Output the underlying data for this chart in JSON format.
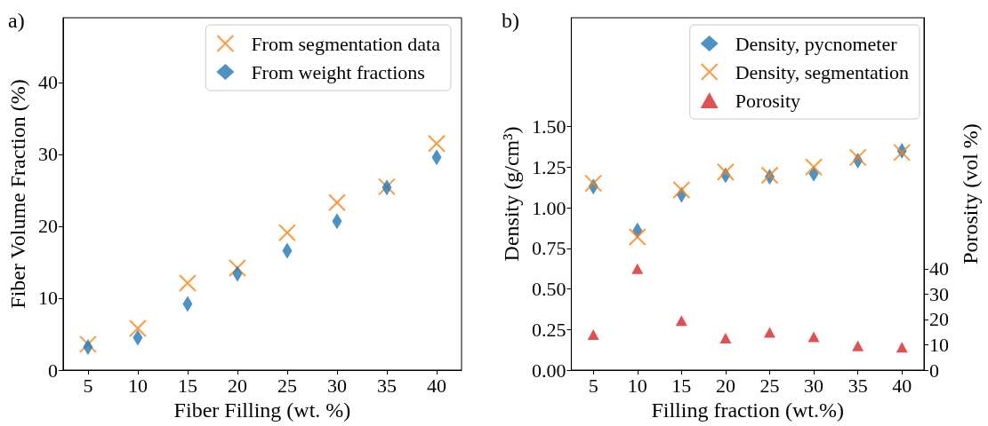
{
  "chart_data": [
    {
      "type": "scatter",
      "title": "a)",
      "xlabel": "Fiber Filling (wt. %)",
      "ylabel": "Fiber Volume Fraction (%)",
      "x": [
        5,
        10,
        15,
        20,
        25,
        30,
        35,
        40
      ],
      "series": [
        {
          "name": "From segmentation data",
          "color": "#ff7f0e",
          "marker": "cross",
          "values": [
            3.6,
            5.8,
            12.1,
            14.2,
            19.1,
            23.3,
            25.5,
            31.5
          ]
        },
        {
          "name": "From weight fractions",
          "color": "#1f77b4",
          "marker": "diamond",
          "values": [
            3.2,
            4.5,
            9.2,
            13.4,
            16.6,
            20.7,
            25.4,
            29.6
          ]
        }
      ],
      "xlim": [
        2.5,
        42.5
      ],
      "xticks": [
        5,
        10,
        15,
        20,
        25,
        30,
        35,
        40
      ],
      "ylim": [
        0,
        49
      ],
      "yticks": [
        0,
        10,
        20,
        30,
        40
      ],
      "legend": "top right"
    },
    {
      "type": "scatter",
      "title": "b)",
      "xlabel": "Filling fraction (wt.%)",
      "ylabel": "Density (g/cm³)",
      "y2label": "Porosity (vol %)",
      "x": [
        5,
        10,
        15,
        20,
        25,
        30,
        35,
        40
      ],
      "series": [
        {
          "name": "Density, pycnometer",
          "color": "#1f77b4",
          "marker": "diamond",
          "values": [
            1.13,
            0.86,
            1.08,
            1.2,
            1.19,
            1.21,
            1.29,
            1.35
          ]
        },
        {
          "name": "Density, segmentation",
          "color": "#ff7f0e",
          "marker": "cross",
          "values": [
            1.15,
            0.82,
            1.11,
            1.22,
            1.2,
            1.25,
            1.31,
            1.34
          ]
        },
        {
          "name": "Porosity",
          "color": "#d62728",
          "marker": "triangle",
          "axis": "y2",
          "values": [
            14,
            40,
            19.5,
            12.6,
            14.9,
            13.1,
            9.5,
            9
          ]
        }
      ],
      "xlim": [
        2.5,
        42.5
      ],
      "xticks": [
        5,
        10,
        15,
        20,
        25,
        30,
        35,
        40
      ],
      "ylim": [
        0,
        2.17
      ],
      "yticks": [
        {
          "value": 0,
          "label": "0.00"
        },
        {
          "value": 0.25,
          "label": "0.25"
        },
        {
          "value": 0.5,
          "label": "0.50"
        },
        {
          "value": 0.75,
          "label": "0.75"
        },
        {
          "value": 1,
          "label": "1.00"
        },
        {
          "value": 1.25,
          "label": "1.25"
        },
        {
          "value": 1.5,
          "label": "1.50"
        }
      ],
      "y2lim": [
        0,
        139
      ],
      "y2ticks": [
        0,
        10,
        20,
        30,
        40
      ],
      "legend": "top right"
    }
  ]
}
